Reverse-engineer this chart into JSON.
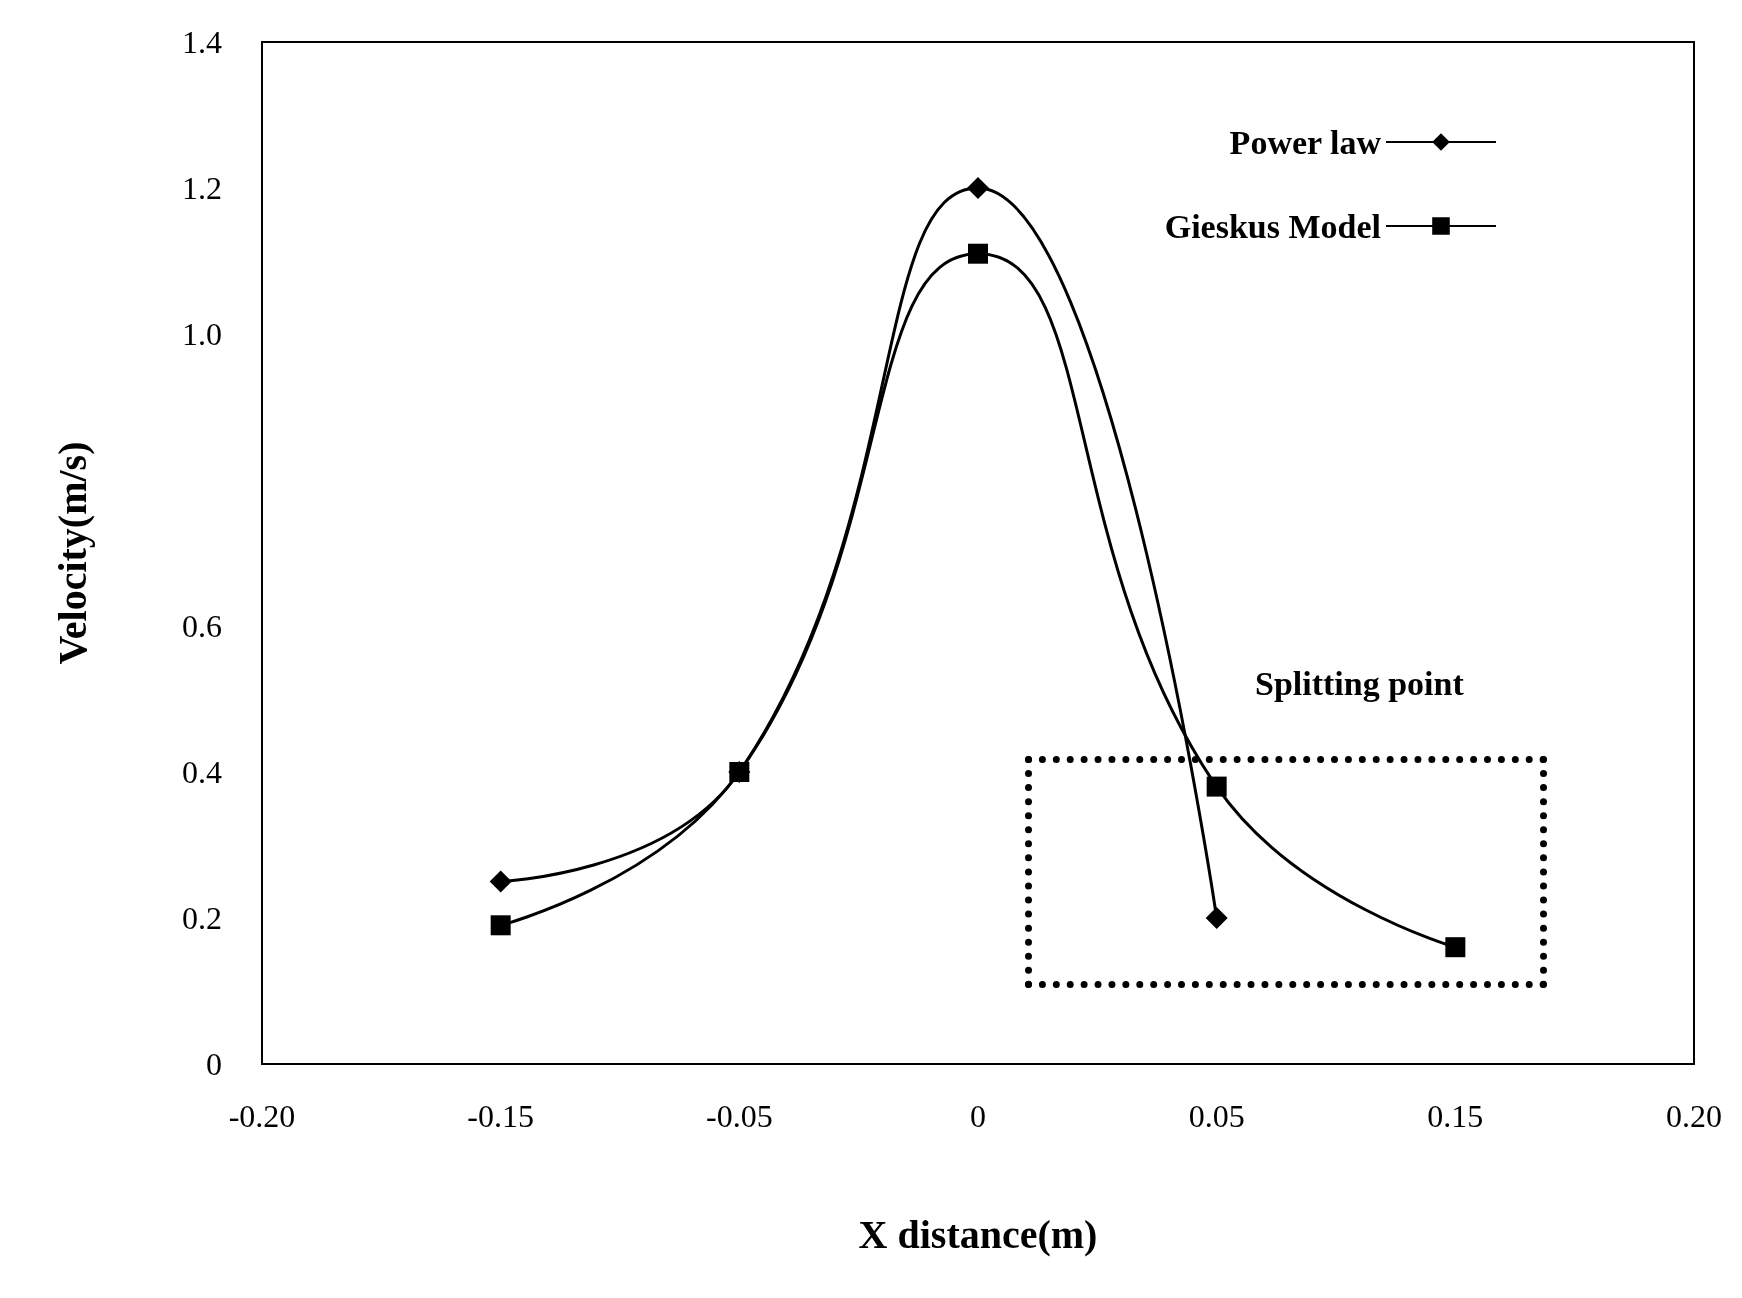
{
  "chart_data": {
    "type": "line",
    "xlabel": "X distance(m)",
    "ylabel": "Velocity(m/s)",
    "categories": [
      "-0.20",
      "-0.15",
      "-0.05",
      "0",
      "0.05",
      "0.15",
      "0.20"
    ],
    "series": [
      {
        "name": "Power law",
        "color": "#000000",
        "marker": "diamond",
        "values": [
          null,
          0.25,
          0.4,
          1.2,
          0.2,
          null,
          null
        ]
      },
      {
        "name": "Gieskus Model",
        "color": "#000000",
        "marker": "square",
        "values": [
          null,
          0.19,
          0.4,
          1.11,
          0.38,
          0.16,
          null
        ]
      }
    ],
    "ylim": [
      0,
      1.4
    ],
    "yticks": [
      0,
      0.2,
      0.4,
      0.6,
      {
        "value": 1,
        "label": "1.0"
      },
      1.2,
      1.4
    ],
    "grid": false,
    "legend": "top right",
    "annotations": [
      "Splitting point"
    ]
  }
}
